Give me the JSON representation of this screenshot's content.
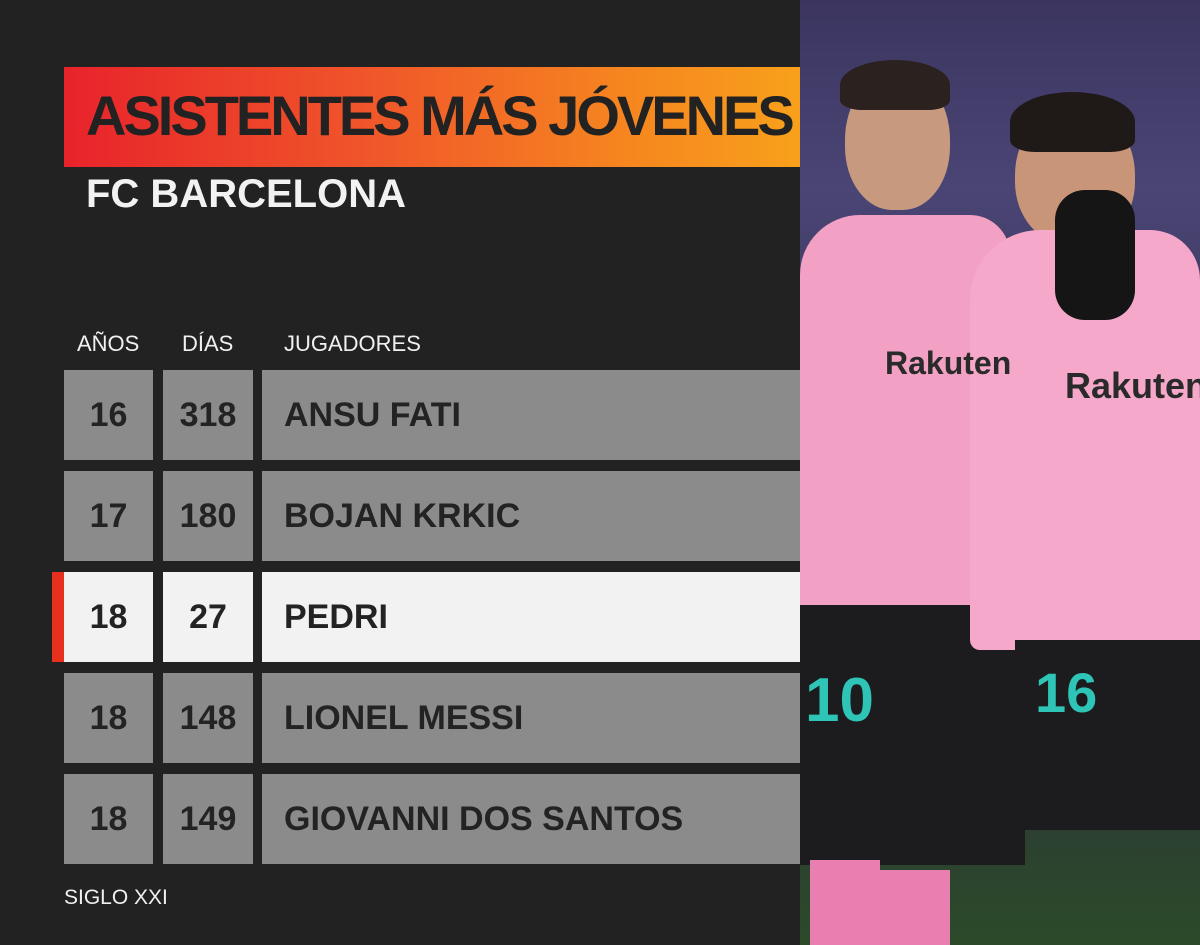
{
  "header": {
    "title": "ASISTENTES MÁS JÓVENES",
    "subtitle": "FC BARCELONA"
  },
  "table": {
    "columns": [
      "AÑOS",
      "DÍAS",
      "JUGADORES"
    ],
    "rows": [
      {
        "years": "16",
        "days": "318",
        "player": "ANSU FATI",
        "highlighted": false
      },
      {
        "years": "17",
        "days": "180",
        "player": "BOJAN KRKIC",
        "highlighted": false
      },
      {
        "years": "18",
        "days": "27",
        "player": "PEDRI",
        "highlighted": true
      },
      {
        "years": "18",
        "days": "148",
        "player": "LIONEL MESSI",
        "highlighted": false
      },
      {
        "years": "18",
        "days": "149",
        "player": "GIOVANNI DOS SANTOS",
        "highlighted": false
      }
    ]
  },
  "footer": {
    "note": "SIGLO XXI"
  },
  "photo": {
    "jersey_numbers": [
      "10",
      "16"
    ],
    "sponsor": "Rakuten"
  },
  "colors": {
    "background": "#222222",
    "title_gradient_start": "#e8232b",
    "title_gradient_end": "#f8a41b",
    "row": "#8b8b8b",
    "highlight_row": "#f2f2f2",
    "highlight_marker": "#e8301f",
    "jersey_pink": "#f4a3c8",
    "number_teal": "#2ec4b6"
  }
}
